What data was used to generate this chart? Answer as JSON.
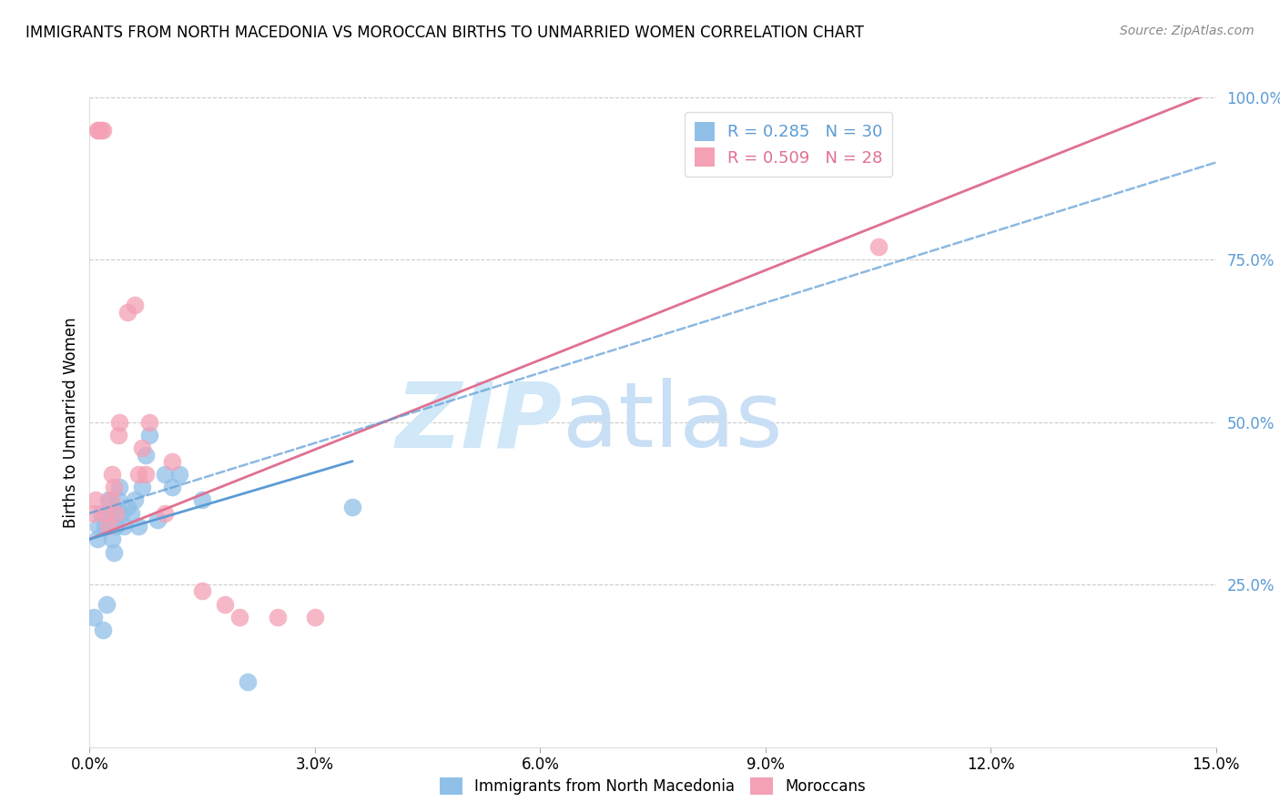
{
  "title": "IMMIGRANTS FROM NORTH MACEDONIA VS MOROCCAN BIRTHS TO UNMARRIED WOMEN CORRELATION CHART",
  "source": "Source: ZipAtlas.com",
  "ylabel_left": "Births to Unmarried Women",
  "x_tick_labels": [
    "0.0%",
    "3.0%",
    "6.0%",
    "9.0%",
    "12.0%",
    "15.0%"
  ],
  "x_tick_values": [
    0.0,
    3.0,
    6.0,
    9.0,
    12.0,
    15.0
  ],
  "y_tick_labels_right": [
    "25.0%",
    "50.0%",
    "75.0%",
    "100.0%"
  ],
  "y_tick_values_right": [
    25.0,
    50.0,
    75.0,
    100.0
  ],
  "xlim": [
    0.0,
    15.0
  ],
  "ylim": [
    0.0,
    100.0
  ],
  "legend_label_blue": "Immigrants from North Macedonia",
  "legend_label_pink": "Moroccans",
  "color_blue": "#90c0e8",
  "color_pink": "#f4a0b5",
  "color_blue_line": "#5b9bd5",
  "color_pink_line": "#e07090",
  "color_axis_right": "#5b9bd5",
  "background": "#ffffff",
  "watermark_zip": "ZIP",
  "watermark_atlas": "atlas",
  "watermark_color": "#d0e8f8",
  "blue_scatter_x": [
    0.05,
    0.1,
    0.12,
    0.15,
    0.18,
    0.2,
    0.22,
    0.25,
    0.28,
    0.3,
    0.32,
    0.35,
    0.38,
    0.4,
    0.42,
    0.45,
    0.5,
    0.55,
    0.6,
    0.65,
    0.7,
    0.75,
    0.8,
    0.9,
    1.0,
    1.1,
    1.2,
    1.5,
    2.1,
    3.5
  ],
  "blue_scatter_y": [
    20,
    32,
    34,
    36,
    18,
    34,
    22,
    38,
    36,
    32,
    30,
    34,
    38,
    40,
    36,
    34,
    37,
    36,
    38,
    34,
    40,
    45,
    48,
    35,
    42,
    40,
    42,
    38,
    10,
    37
  ],
  "pink_scatter_x": [
    0.05,
    0.08,
    0.1,
    0.12,
    0.15,
    0.18,
    0.2,
    0.25,
    0.28,
    0.3,
    0.32,
    0.35,
    0.38,
    0.4,
    0.5,
    0.6,
    0.65,
    0.7,
    0.75,
    0.8,
    1.0,
    1.1,
    1.5,
    1.8,
    2.0,
    2.5,
    3.0,
    10.5
  ],
  "pink_scatter_y": [
    36,
    38,
    95,
    95,
    95,
    95,
    36,
    34,
    38,
    42,
    40,
    36,
    48,
    50,
    67,
    68,
    42,
    46,
    42,
    50,
    36,
    44,
    24,
    22,
    20,
    20,
    20,
    77
  ],
  "blue_trend_x": [
    0.0,
    3.5
  ],
  "blue_trend_y": [
    32.0,
    44.0
  ],
  "pink_trend_x": [
    0.0,
    15.0
  ],
  "pink_trend_y": [
    32.0,
    101.0
  ],
  "dashed_trend_x": [
    0.0,
    15.0
  ],
  "dashed_trend_y": [
    36.0,
    90.0
  ]
}
